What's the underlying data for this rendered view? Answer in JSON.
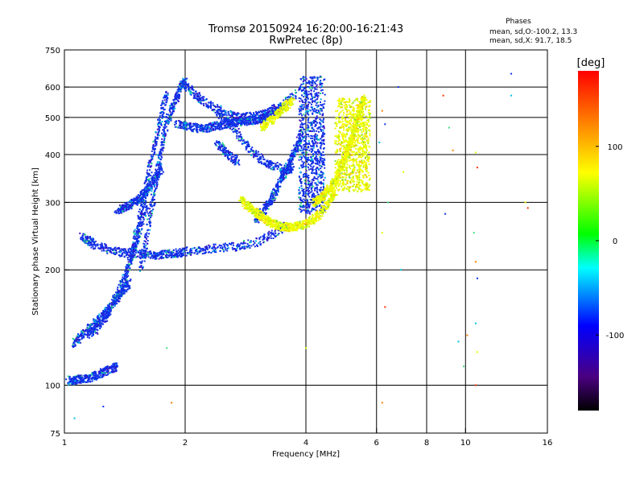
{
  "chart_data": {
    "type": "scatter",
    "title": "Tromsø 20150924 16:20:00-16:21:43",
    "subtitle": "RwPretec (8p)",
    "xlabel": "Frequency [MHz]",
    "ylabel": "Stationary phase Virtual Height [km]",
    "x_scale": "log",
    "y_scale": "log",
    "xlim": [
      1,
      16
    ],
    "ylim": [
      75,
      750
    ],
    "x_ticks": [
      1,
      2,
      4,
      6,
      8,
      10,
      16
    ],
    "y_ticks": [
      75,
      100,
      200,
      300,
      400,
      500,
      600,
      750
    ],
    "grid_x": [
      2,
      4,
      6,
      8,
      10
    ],
    "grid_y": [
      100,
      200,
      300,
      400,
      500,
      600
    ],
    "legend": {
      "header": "Phases",
      "line1": "mean, sd,O:-100.2, 13.3",
      "line2": "mean, sd,X:  91.7, 18.5"
    },
    "colorbar": {
      "label": "[deg]",
      "range": [
        -180,
        180
      ],
      "ticks": [
        100,
        0,
        -100
      ]
    },
    "series": [
      {
        "name": "O",
        "phase_mean": -100.2,
        "phase_sd": 13.3,
        "traces": [
          {
            "kind": "curve",
            "x": [
              1.02,
              1.06,
              1.1,
              1.15,
              1.2,
              1.25,
              1.3,
              1.35
            ],
            "y": [
              103,
              103,
              104,
              104,
              106,
              108,
              110,
              112
            ]
          },
          {
            "kind": "curve",
            "x": [
              1.05,
              1.1,
              1.15,
              1.2,
              1.25,
              1.3,
              1.35,
              1.4,
              1.45
            ],
            "y": [
              128,
              134,
              140,
              146,
              152,
              160,
              168,
              176,
              185
            ]
          },
          {
            "kind": "curve",
            "x": [
              1.15,
              1.2,
              1.25,
              1.3,
              1.35,
              1.4,
              1.45,
              1.5,
              1.55,
              1.6
            ],
            "y": [
              135,
              140,
              148,
              158,
              170,
              185,
              205,
              230,
              260,
              295
            ]
          },
          {
            "kind": "curve",
            "x": [
              1.1,
              1.15,
              1.2,
              1.3,
              1.4,
              1.5,
              1.6,
              1.7,
              1.8,
              1.9,
              2.0,
              2.2,
              2.4,
              2.7,
              3.0,
              3.3,
              3.6
            ],
            "y": [
              245,
              238,
              232,
              226,
              222,
              220,
              219,
              219,
              220,
              221,
              223,
              226,
              228,
              230,
              236,
              248,
              262
            ]
          },
          {
            "kind": "curve",
            "x": [
              1.55,
              1.6,
              1.65,
              1.7,
              1.75,
              1.8,
              1.85,
              1.9,
              1.95,
              2.0
            ],
            "y": [
              200,
              240,
              290,
              350,
              420,
              480,
              520,
              560,
              600,
              620
            ]
          },
          {
            "kind": "curve",
            "x": [
              1.45,
              1.5,
              1.55,
              1.6,
              1.65,
              1.7,
              1.75,
              1.8
            ],
            "y": [
              210,
              240,
              280,
              330,
              390,
              450,
              510,
              580
            ]
          },
          {
            "kind": "curve",
            "x": [
              1.35,
              1.4,
              1.45,
              1.5,
              1.55,
              1.6,
              1.65,
              1.7,
              1.75
            ],
            "y": [
              285,
              290,
              295,
              300,
              310,
              320,
              335,
              350,
              370
            ]
          },
          {
            "kind": "curve",
            "x": [
              1.9,
              2.0,
              2.1,
              2.2,
              2.3,
              2.4,
              2.5,
              2.6,
              2.7,
              2.8,
              2.9,
              3.0,
              3.1,
              3.2,
              3.3,
              3.4,
              3.5
            ],
            "y": [
              480,
              475,
              470,
              468,
              470,
              475,
              480,
              483,
              485,
              488,
              490,
              492,
              496,
              503,
              510,
              520,
              535
            ]
          },
          {
            "kind": "curve",
            "x": [
              2.0,
              2.1,
              2.2,
              2.4,
              2.6,
              2.8,
              3.0,
              3.2,
              3.5,
              3.8
            ],
            "y": [
              610,
              580,
              555,
              525,
              505,
              500,
              505,
              515,
              540,
              580
            ]
          },
          {
            "kind": "curve",
            "x": [
              2.4,
              2.6,
              2.8,
              3.0,
              3.2,
              3.4,
              3.6,
              3.7
            ],
            "y": [
              520,
              475,
              430,
              400,
              380,
              370,
              365,
              370
            ]
          },
          {
            "kind": "curve",
            "x": [
              3.0,
              3.1,
              3.2,
              3.3,
              3.4,
              3.5,
              3.6,
              3.7,
              3.8,
              3.9
            ],
            "y": [
              270,
              280,
              295,
              310,
              330,
              350,
              372,
              395,
              420,
              450
            ]
          },
          {
            "kind": "curve",
            "x": [
              2.4,
              2.5,
              2.6,
              2.7
            ],
            "y": [
              430,
              410,
              395,
              385
            ]
          },
          {
            "kind": "band",
            "x": [
              3.9,
              4.0,
              4.1,
              4.2,
              4.3,
              4.4
            ],
            "y_range": [
              280,
              640
            ]
          }
        ]
      },
      {
        "name": "X",
        "phase_mean": 91.7,
        "phase_sd": 18.5,
        "traces": [
          {
            "kind": "curve",
            "x": [
              2.75,
              2.85,
              2.95,
              3.05,
              3.15,
              3.25,
              3.35,
              3.45,
              3.55,
              3.65,
              3.75,
              3.85,
              4.0,
              4.15,
              4.3,
              4.45,
              4.6,
              4.75
            ],
            "y": [
              305,
              295,
              287,
              279,
              272,
              267,
              263,
              260,
              259,
              258,
              259,
              261,
              264,
              270,
              278,
              290,
              305,
              322
            ]
          },
          {
            "kind": "curve",
            "x": [
              4.2,
              4.3,
              4.4,
              4.5,
              4.6,
              4.7,
              4.8,
              4.9,
              5.0,
              5.1,
              5.2,
              5.3,
              5.4,
              5.5,
              5.6
            ],
            "y": [
              300,
              305,
              310,
              318,
              328,
              340,
              355,
              372,
              392,
              415,
              440,
              470,
              505,
              540,
              560
            ]
          },
          {
            "kind": "band",
            "x": [
              4.8,
              4.9,
              5.0,
              5.1,
              5.2,
              5.3,
              5.4,
              5.5,
              5.6,
              5.7
            ],
            "y_range": [
              320,
              560
            ]
          },
          {
            "kind": "curve",
            "x": [
              3.1,
              3.2,
              3.3,
              3.4,
              3.5,
              3.6,
              3.7
            ],
            "y": [
              470,
              482,
              495,
              510,
              525,
              540,
              555
            ]
          }
        ]
      }
    ],
    "scattered_points": [
      {
        "x": 6.2,
        "y": 520
      },
      {
        "x": 6.3,
        "y": 480
      },
      {
        "x": 6.1,
        "y": 430
      },
      {
        "x": 6.2,
        "y": 250
      },
      {
        "x": 6.3,
        "y": 160
      },
      {
        "x": 6.4,
        "y": 300
      },
      {
        "x": 6.2,
        "y": 90
      },
      {
        "x": 6.8,
        "y": 600
      },
      {
        "x": 6.9,
        "y": 200
      },
      {
        "x": 7.0,
        "y": 360
      },
      {
        "x": 8.8,
        "y": 570
      },
      {
        "x": 9.1,
        "y": 470
      },
      {
        "x": 9.3,
        "y": 410
      },
      {
        "x": 8.9,
        "y": 280
      },
      {
        "x": 9.6,
        "y": 130
      },
      {
        "x": 10.6,
        "y": 405
      },
      {
        "x": 10.7,
        "y": 370
      },
      {
        "x": 10.5,
        "y": 250
      },
      {
        "x": 10.6,
        "y": 210
      },
      {
        "x": 10.7,
        "y": 190
      },
      {
        "x": 10.6,
        "y": 145
      },
      {
        "x": 10.7,
        "y": 122
      },
      {
        "x": 10.6,
        "y": 100
      },
      {
        "x": 9.9,
        "y": 112
      },
      {
        "x": 10.1,
        "y": 135
      },
      {
        "x": 13.0,
        "y": 650
      },
      {
        "x": 13.0,
        "y": 570
      },
      {
        "x": 14.1,
        "y": 300
      },
      {
        "x": 14.3,
        "y": 290
      },
      {
        "x": 1.8,
        "y": 125
      },
      {
        "x": 1.85,
        "y": 90
      },
      {
        "x": 1.25,
        "y": 88
      },
      {
        "x": 1.06,
        "y": 82
      },
      {
        "x": 4.0,
        "y": 125
      }
    ]
  }
}
